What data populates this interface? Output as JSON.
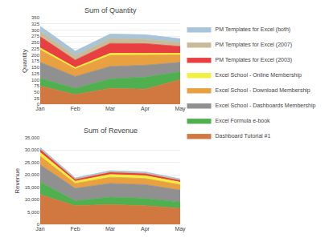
{
  "chart_data": [
    {
      "type": "area",
      "stacked": true,
      "title": "Sum of Quantity",
      "ylabel": "Quantity",
      "categories": [
        "Jan",
        "Feb",
        "Mar",
        "Apr",
        "May"
      ],
      "series": [
        {
          "name": "PM Templates for Excel (both)",
          "color": "#a8c4d8",
          "values": [
            20,
            18,
            18,
            18,
            15
          ]
        },
        {
          "name": "PM Templates for Excel (2007)",
          "color": "#c8bb9a",
          "values": [
            22,
            18,
            20,
            18,
            16
          ]
        },
        {
          "name": "PM Templates for Excel (2003)",
          "color": "#e84040",
          "values": [
            45,
            30,
            40,
            38,
            28
          ]
        },
        {
          "name": "Excel School - Online Membership",
          "color": "#f0f040",
          "values": [
            8,
            6,
            8,
            7,
            6
          ]
        },
        {
          "name": "Excel School - Download Membership",
          "color": "#e8a040",
          "values": [
            50,
            30,
            45,
            42,
            30
          ]
        },
        {
          "name": "Excel School - Dashboards Membership",
          "color": "#909090",
          "values": [
            65,
            48,
            50,
            48,
            38
          ]
        },
        {
          "name": "Excel Formula e-book",
          "color": "#50b050",
          "values": [
            30,
            25,
            38,
            48,
            32
          ]
        },
        {
          "name": "Dashboard Tutorial #1",
          "color": "#d07840",
          "values": [
            75,
            40,
            65,
            62,
            100
          ]
        }
      ],
      "ylim": [
        0,
        350
      ],
      "yticks": [
        0,
        25,
        50,
        75,
        100,
        125,
        150,
        175,
        200,
        225,
        250,
        275,
        300,
        325,
        350
      ],
      "grid": true,
      "legend": "right"
    },
    {
      "type": "area",
      "stacked": true,
      "title": "Sum of Revenue",
      "ylabel": "Revenue",
      "categories": [
        "Jan",
        "Feb",
        "Mar",
        "Apr",
        "May"
      ],
      "series": [
        {
          "name": "PM Templates for Excel (both)",
          "color": "#a8c4d8",
          "values": [
            600,
            400,
            450,
            450,
            400
          ]
        },
        {
          "name": "PM Templates for Excel (2007)",
          "color": "#c8bb9a",
          "values": [
            200,
            150,
            180,
            180,
            160
          ]
        },
        {
          "name": "PM Templates for Excel (2003)",
          "color": "#e84040",
          "values": [
            1200,
            800,
            900,
            900,
            800
          ]
        },
        {
          "name": "Excel School - Online Membership",
          "color": "#f0f040",
          "values": [
            1500,
            900,
            1100,
            1100,
            1000
          ]
        },
        {
          "name": "Excel School - Download Membership",
          "color": "#e8a040",
          "values": [
            3500,
            2000,
            2500,
            2500,
            2200
          ]
        },
        {
          "name": "Excel School - Dashboards Membership",
          "color": "#909090",
          "values": [
            7000,
            5000,
            5500,
            5500,
            4800
          ]
        },
        {
          "name": "Excel Formula e-book",
          "color": "#50b050",
          "values": [
            5000,
            2000,
            3000,
            3000,
            2500
          ]
        },
        {
          "name": "Dashboard Tutorial #1",
          "color": "#d07840",
          "values": [
            12000,
            7500,
            8000,
            7500,
            6500
          ]
        }
      ],
      "ylim": [
        0,
        35000
      ],
      "yticks": [
        0,
        {
          "value": 5000,
          "label": "5,000"
        },
        {
          "value": 10000,
          "label": "10,000"
        },
        {
          "value": 15000,
          "label": "15,000"
        },
        {
          "value": 20000,
          "label": "20,000"
        },
        {
          "value": 25000,
          "label": "25,000"
        },
        {
          "value": 30000,
          "label": "30,000"
        },
        {
          "value": 35000,
          "label": "35,000"
        }
      ],
      "grid": true,
      "legend": "right"
    }
  ]
}
